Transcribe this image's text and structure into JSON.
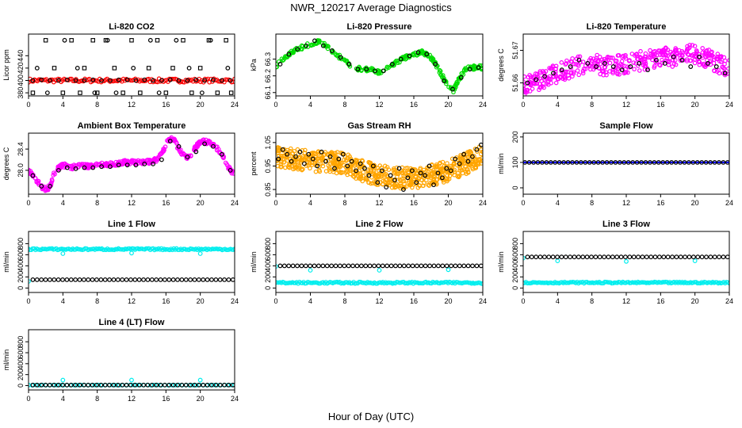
{
  "figure": {
    "title": "NWR_120217  Average Diagnostics",
    "xlabel": "Hour of Day (UTC)"
  },
  "colors": {
    "black": "#000000",
    "red": "#ff0000",
    "green": "#00dd00",
    "magenta": "#ff00ff",
    "orange": "#ffa500",
    "cyan": "#00eeee",
    "blue": "#0000ff"
  },
  "x_ticks": [
    0,
    4,
    8,
    12,
    16,
    20,
    24
  ],
  "chart_data": [
    {
      "type": "scatter",
      "title": "Li-820 CO2",
      "ylabel": "Licor ppm",
      "xlim": [
        0,
        24
      ],
      "ylim": [
        375,
        475
      ],
      "yticks": [
        380,
        400,
        420,
        440
      ],
      "series": [
        {
          "color": "red",
          "kind": "band",
          "x_range": [
            0,
            24
          ],
          "y_low": 397,
          "y_high": 403,
          "density": 140
        },
        {
          "color": "black",
          "kind": "points",
          "symbol": "circle",
          "x": [
            0.5,
            1.5,
            2.5,
            3.5,
            4.5,
            5.5,
            6.5,
            7.5,
            8.5,
            9.5,
            10.5,
            11.5,
            12.5,
            13.5,
            14.5,
            15.5,
            16.5,
            17.5,
            18.5,
            19.5,
            20.5,
            21.5,
            22.5,
            23.5
          ],
          "y": [
            400,
            401,
            400,
            400,
            401,
            400,
            400,
            401,
            400,
            400,
            401,
            401,
            400,
            401,
            400,
            400,
            401,
            400,
            400,
            401,
            400,
            401,
            400,
            400
          ]
        },
        {
          "color": "black",
          "kind": "points",
          "symbol": "square",
          "x": [
            0.5,
            2,
            3,
            4,
            5,
            6,
            6.5,
            7.5,
            8,
            9,
            10,
            11,
            12,
            13,
            14,
            15,
            16,
            16.8,
            18,
            19,
            20,
            21,
            22,
            23,
            23.6
          ],
          "y": [
            380,
            465,
            420,
            380,
            465,
            380,
            420,
            465,
            380,
            465,
            420,
            380,
            465,
            380,
            420,
            465,
            380,
            420,
            465,
            380,
            420,
            465,
            380,
            465,
            380
          ]
        },
        {
          "color": "black",
          "kind": "points",
          "symbol": "circle",
          "x": [
            1,
            2.2,
            4.2,
            5.7,
            7.7,
            9.2,
            10.2,
            12.2,
            14.2,
            15.2,
            17.2,
            18.7,
            20.2,
            21.2,
            23.2
          ],
          "y": [
            420,
            380,
            465,
            420,
            380,
            465,
            380,
            420,
            465,
            380,
            465,
            420,
            380,
            465,
            420
          ]
        }
      ]
    },
    {
      "type": "scatter",
      "title": "Li-820 Pressure",
      "ylabel": "kPa",
      "xlim": [
        0,
        24
      ],
      "ylim": [
        66.08,
        66.45
      ],
      "yticks": [
        66.1,
        66.2,
        66.3
      ],
      "series": [
        {
          "color": "green",
          "kind": "curve-band",
          "spread": 0.012,
          "density": 260,
          "x": [
            0,
            1,
            2,
            3,
            4,
            5,
            6,
            7,
            8,
            9,
            10,
            11,
            12,
            13,
            14,
            15,
            16,
            17,
            18,
            19,
            20,
            20.6,
            21,
            22,
            23,
            24
          ],
          "y": [
            66.26,
            66.31,
            66.35,
            66.37,
            66.39,
            66.41,
            66.37,
            66.33,
            66.29,
            66.25,
            66.24,
            66.24,
            66.22,
            66.25,
            66.28,
            66.31,
            66.33,
            66.34,
            66.31,
            66.23,
            66.13,
            66.11,
            66.16,
            66.24,
            66.25,
            66.25
          ]
        },
        {
          "color": "black",
          "kind": "points",
          "symbol": "circle",
          "x": [
            0.5,
            1.5,
            2.5,
            3.5,
            4.5,
            5.5,
            6.5,
            7.5,
            8.5,
            9.5,
            10.5,
            11.5,
            12.5,
            13.5,
            14.5,
            15.5,
            16.5,
            17.5,
            18.5,
            19.5,
            20.5,
            21.5,
            22.5,
            23.5
          ],
          "y": [
            66.27,
            66.33,
            66.36,
            66.38,
            66.41,
            66.38,
            66.35,
            66.31,
            66.27,
            66.24,
            66.24,
            66.23,
            66.23,
            66.27,
            66.3,
            66.32,
            66.34,
            66.33,
            66.27,
            66.17,
            66.12,
            66.19,
            66.24,
            66.25
          ]
        }
      ]
    },
    {
      "type": "scatter",
      "title": "Li-820 Temperature",
      "ylabel": "degrees C",
      "xlim": [
        0,
        24
      ],
      "ylim": [
        51.656,
        51.675
      ],
      "yticks": [
        51.66,
        51.67
      ],
      "series": [
        {
          "color": "magenta",
          "kind": "curve-band",
          "spread": 0.003,
          "density": 420,
          "x": [
            0,
            2,
            4,
            6,
            8,
            10,
            12,
            14,
            16,
            18,
            20,
            22,
            24
          ],
          "y": [
            51.659,
            51.661,
            51.663,
            51.665,
            51.666,
            51.665,
            51.666,
            51.667,
            51.668,
            51.668,
            51.669,
            51.667,
            51.664
          ]
        },
        {
          "color": "black",
          "kind": "points",
          "symbol": "circle",
          "x": [
            0.5,
            1.5,
            2.5,
            3.5,
            4.5,
            5.5,
            6.5,
            7.5,
            8.5,
            9.5,
            10.5,
            11.5,
            12.5,
            13.5,
            14.5,
            15.5,
            16.5,
            17.5,
            18.5,
            19.5,
            20.5,
            21.5,
            22.5,
            23.5
          ],
          "y": [
            51.66,
            51.661,
            51.662,
            51.663,
            51.664,
            51.665,
            51.667,
            51.666,
            51.665,
            51.666,
            51.665,
            51.664,
            51.665,
            51.666,
            51.664,
            51.667,
            51.666,
            51.668,
            51.667,
            51.665,
            51.668,
            51.666,
            51.665,
            51.663
          ]
        }
      ]
    },
    {
      "type": "scatter",
      "title": "Ambient Box Temperature",
      "ylabel": "degrees C",
      "xlim": [
        0,
        24
      ],
      "ylim": [
        27.55,
        28.7
      ],
      "yticks": [
        28.0,
        28.4
      ],
      "yticklabels": [
        "28.0",
        "28.4"
      ],
      "series": [
        {
          "color": "magenta",
          "kind": "curve-band",
          "spread": 0.04,
          "density": 380,
          "x": [
            0,
            0.5,
            1,
            1.5,
            2,
            2.5,
            3,
            3.5,
            4,
            5,
            6,
            7,
            8,
            9,
            10,
            11,
            12,
            13,
            14,
            15,
            15.5,
            16,
            16.5,
            17,
            17.5,
            18,
            18.5,
            19,
            19.5,
            20,
            20.5,
            21,
            21.5,
            22,
            22.5,
            23,
            23.5,
            24
          ],
          "y": [
            28.0,
            27.9,
            27.8,
            27.7,
            27.63,
            27.7,
            27.95,
            28.05,
            28.1,
            28.05,
            28.1,
            28.08,
            28.12,
            28.1,
            28.12,
            28.15,
            28.15,
            28.15,
            28.16,
            28.2,
            28.3,
            28.5,
            28.6,
            28.55,
            28.4,
            28.3,
            28.25,
            28.3,
            28.45,
            28.52,
            28.55,
            28.52,
            28.48,
            28.4,
            28.3,
            28.15,
            28.0,
            27.9
          ]
        },
        {
          "color": "black",
          "kind": "points",
          "symbol": "circle",
          "x": [
            0.5,
            1.5,
            2.5,
            3.5,
            4.5,
            5.5,
            6.5,
            7.5,
            8.5,
            9.5,
            10.5,
            11.5,
            12.5,
            13.5,
            14.5,
            15.5,
            16.5,
            17.5,
            18.5,
            19.5,
            20.5,
            21.5,
            22.5,
            23.5
          ],
          "y": [
            27.9,
            27.7,
            27.7,
            28.0,
            28.05,
            28.03,
            28.05,
            28.05,
            28.07,
            28.07,
            28.1,
            28.1,
            28.1,
            28.12,
            28.12,
            28.2,
            28.55,
            28.45,
            28.25,
            28.35,
            28.5,
            28.45,
            28.3,
            28.0
          ]
        }
      ]
    },
    {
      "type": "scatter",
      "title": "Gas Stream RH",
      "ylabel": "percent",
      "xlim": [
        0,
        24
      ],
      "ylim": [
        0.83,
        1.09
      ],
      "yticks": [
        0.85,
        0.95,
        1.05
      ],
      "yticklabels": [
        "0.85",
        "0.95",
        "1.05"
      ],
      "series": [
        {
          "color": "orange",
          "kind": "curve-band",
          "spread": 0.045,
          "density": 650,
          "x": [
            0,
            2,
            4,
            6,
            8,
            10,
            12,
            14,
            16,
            18,
            20,
            22,
            24
          ],
          "y": [
            0.99,
            0.98,
            0.97,
            0.97,
            0.96,
            0.93,
            0.91,
            0.9,
            0.9,
            0.91,
            0.93,
            0.96,
            1.0
          ]
        },
        {
          "color": "black",
          "kind": "points",
          "symbol": "circle",
          "x": [
            0.3,
            0.8,
            1.3,
            1.8,
            2.3,
            2.8,
            3.3,
            3.8,
            4.3,
            4.8,
            5.3,
            5.8,
            6.3,
            6.8,
            7.3,
            7.8,
            8.3,
            8.8,
            9.3,
            9.8,
            10.3,
            10.8,
            11.3,
            11.8,
            12.3,
            12.8,
            13.3,
            13.8,
            14.3,
            14.8,
            15.3,
            15.8,
            16.3,
            16.8,
            17.3,
            17.8,
            18.3,
            18.8,
            19.3,
            19.8,
            20.3,
            20.8,
            21.3,
            21.8,
            22.3,
            22.8,
            23.3,
            23.8
          ],
          "y": [
            0.98,
            1.02,
            1.0,
            0.97,
            0.99,
            1.01,
            0.96,
            1.0,
            0.98,
            0.95,
            1.01,
            0.97,
            0.99,
            0.94,
            0.98,
            1.0,
            0.95,
            0.97,
            0.93,
            0.96,
            0.94,
            0.91,
            0.95,
            0.88,
            0.93,
            0.86,
            0.91,
            0.89,
            0.94,
            0.85,
            0.9,
            0.93,
            0.88,
            0.92,
            0.91,
            0.95,
            0.87,
            0.92,
            0.9,
            0.94,
            0.93,
            0.98,
            0.96,
            1.0,
            0.97,
            0.99,
            1.02,
            1.04
          ]
        }
      ]
    },
    {
      "type": "scatter",
      "title": "Sample Flow",
      "ylabel": "ml/min",
      "xlim": [
        0,
        24
      ],
      "ylim": [
        -25,
        215
      ],
      "yticks": [
        0,
        100,
        200
      ],
      "series": [
        {
          "color": "blue",
          "kind": "line",
          "x": [
            0,
            24
          ],
          "y": [
            100,
            100
          ]
        },
        {
          "color": "black",
          "kind": "points",
          "symbol": "circle",
          "count": 48,
          "x_range": [
            0.2,
            23.8
          ],
          "y_const": 100
        }
      ]
    },
    {
      "type": "scatter",
      "title": "Line 1 Flow",
      "ylabel": "ml/min",
      "xlim": [
        0,
        24
      ],
      "ylim": [
        -80,
        1020
      ],
      "yticks": [
        0,
        200,
        400,
        600,
        800
      ],
      "series": [
        {
          "color": "cyan",
          "kind": "band",
          "x_range": [
            0,
            24
          ],
          "y_low": 685,
          "y_high": 715,
          "density": 150
        },
        {
          "color": "cyan",
          "kind": "points",
          "symbol": "circle",
          "x": [
            0,
            4,
            12,
            20
          ],
          "y": [
            120,
            620,
            630,
            620
          ]
        },
        {
          "color": "black",
          "kind": "points",
          "symbol": "circle",
          "count": 48,
          "x_range": [
            0.5,
            23.8
          ],
          "y_const": 150
        }
      ]
    },
    {
      "type": "scatter",
      "title": "Line 2 Flow",
      "ylabel": "ml/min",
      "xlim": [
        0,
        24
      ],
      "ylim": [
        -80,
        1020
      ],
      "yticks": [
        0,
        200,
        400,
        600,
        800
      ],
      "series": [
        {
          "color": "cyan",
          "kind": "band",
          "x_range": [
            0,
            24
          ],
          "y_low": 80,
          "y_high": 110,
          "density": 150
        },
        {
          "color": "cyan",
          "kind": "points",
          "symbol": "circle",
          "x": [
            0,
            4,
            12,
            20
          ],
          "y": [
            390,
            320,
            320,
            330
          ]
        },
        {
          "color": "black",
          "kind": "points",
          "symbol": "circle",
          "count": 48,
          "x_range": [
            0.5,
            23.8
          ],
          "y_const": 400
        }
      ]
    },
    {
      "type": "scatter",
      "title": "Line 3 Flow",
      "ylabel": "ml/min",
      "xlim": [
        0,
        24
      ],
      "ylim": [
        -80,
        1020
      ],
      "yticks": [
        0,
        200,
        400,
        600,
        800
      ],
      "series": [
        {
          "color": "cyan",
          "kind": "band",
          "x_range": [
            0,
            24
          ],
          "y_low": 85,
          "y_high": 110,
          "density": 150
        },
        {
          "color": "cyan",
          "kind": "points",
          "symbol": "circle",
          "x": [
            0,
            4,
            12,
            20
          ],
          "y": [
            540,
            490,
            480,
            490
          ]
        },
        {
          "color": "black",
          "kind": "points",
          "symbol": "circle",
          "count": 48,
          "x_range": [
            0.5,
            23.8
          ],
          "y_const": 560
        }
      ]
    },
    {
      "type": "scatter",
      "title": "Line 4 (LT) Flow",
      "ylabel": "ml/min",
      "xlim": [
        0,
        24
      ],
      "ylim": [
        -80,
        1020
      ],
      "yticks": [
        0,
        200,
        400,
        600,
        800
      ],
      "series": [
        {
          "color": "cyan",
          "kind": "points",
          "symbol": "circle",
          "x": [
            0,
            4,
            12,
            20
          ],
          "y": [
            10,
            100,
            100,
            100
          ]
        },
        {
          "color": "cyan",
          "kind": "band",
          "x_range": [
            0,
            24
          ],
          "y_low": 5,
          "y_high": 12,
          "density": 60
        },
        {
          "color": "black",
          "kind": "points",
          "symbol": "circle",
          "count": 48,
          "x_range": [
            0.5,
            23.8
          ],
          "y_const": 10
        }
      ]
    }
  ]
}
